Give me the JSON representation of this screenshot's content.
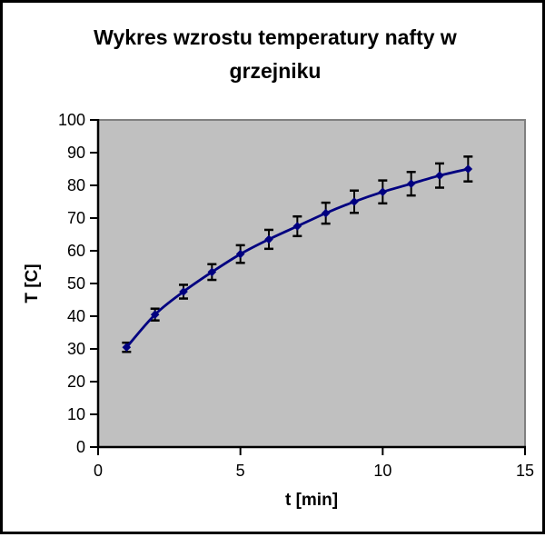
{
  "title_lines": [
    "Wykres wzrostu temperatury nafty w",
    "grzejniku"
  ],
  "chart_data": {
    "type": "line",
    "title": "Wykres wzrostu temperatury nafty w grzejniku",
    "xlabel": "t [min]",
    "ylabel": "T [C]",
    "x": [
      1,
      2,
      3,
      4,
      5,
      6,
      7,
      8,
      9,
      10,
      11,
      12,
      13
    ],
    "series": [
      {
        "name": "T",
        "values": [
          30.5,
          40.5,
          47.5,
          53.5,
          59,
          63.5,
          67.5,
          71.5,
          75,
          78,
          80.5,
          83,
          85
        ],
        "errors": [
          1.4,
          1.8,
          2.1,
          2.4,
          2.7,
          2.9,
          3.0,
          3.2,
          3.4,
          3.5,
          3.6,
          3.7,
          3.8
        ],
        "line_color": "#000080",
        "marker": "diamond",
        "error_bar_color": "#000000"
      }
    ],
    "xlim": [
      0,
      15
    ],
    "ylim": [
      0,
      100
    ],
    "x_ticks": [
      0,
      5,
      10,
      15
    ],
    "y_ticks": [
      0,
      10,
      20,
      30,
      40,
      50,
      60,
      70,
      80,
      90,
      100
    ],
    "grid": false,
    "legend": false,
    "error_bars": true,
    "smooth_line": true,
    "plot_bg": "#c0c0c0",
    "plot_border": "#808080",
    "axis_color": "#000000",
    "text_color": "#000000",
    "frame_border_color": "#000000",
    "page_bg": "#ffffff"
  }
}
